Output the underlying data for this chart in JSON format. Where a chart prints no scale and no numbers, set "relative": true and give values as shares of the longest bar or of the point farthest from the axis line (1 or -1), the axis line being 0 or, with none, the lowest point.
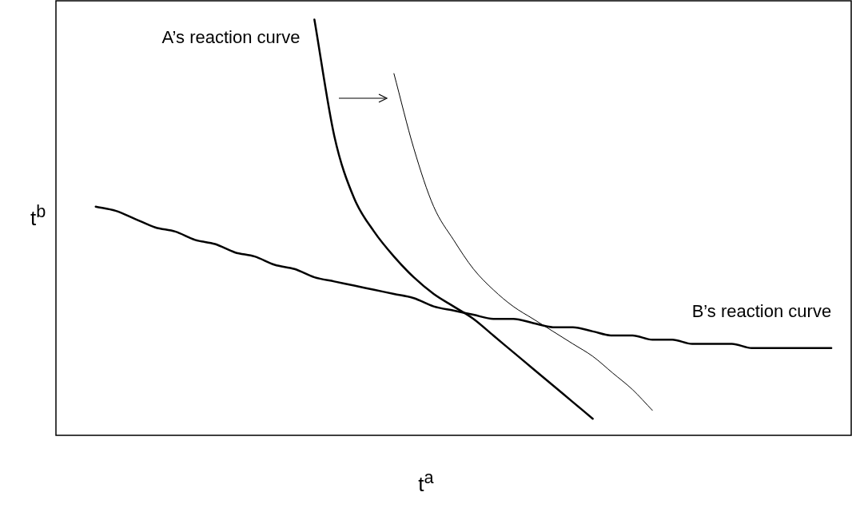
{
  "chart_data": {
    "type": "line",
    "relative": true,
    "xlabel": "t$^{a}$",
    "ylabel": "t$^{b}$",
    "legend": false,
    "marker": "none",
    "categories": [
      null,
      null,
      null,
      null,
      null,
      null,
      null,
      null,
      null,
      null,
      null,
      null,
      null,
      null,
      null,
      null,
      null,
      null,
      null,
      null,
      null,
      null,
      null,
      null,
      null,
      null,
      null,
      null,
      null,
      null,
      null,
      null,
      null,
      null,
      null,
      null,
      null,
      null,
      null,
      null,
      null
    ],
    "series": [
      {
        "name": "A’s reaction curve",
        "color": "#000000",
        "values": [
          null,
          null,
          null,
          null,
          null,
          null,
          null,
          null,
          null,
          null,
          null,
          null,
          null,
          1,
          0.72,
          0.57,
          0.49,
          0.43,
          0.38,
          0.34,
          0.31,
          0.28,
          0.24,
          0.2,
          0.16,
          0.12,
          0.08,
          0.04,
          null,
          null,
          null,
          null,
          null,
          null,
          null,
          null,
          null,
          null,
          null,
          null,
          null
        ]
      },
      {
        "color": "#000000",
        "values": [
          null,
          null,
          null,
          null,
          null,
          null,
          null,
          null,
          null,
          null,
          null,
          null,
          null,
          null,
          null,
          null,
          null,
          0.87,
          0.69,
          0.55,
          0.47,
          0.4,
          0.35,
          0.31,
          0.28,
          0.25,
          0.22,
          0.19,
          0.15,
          0.11,
          0.06,
          null,
          null,
          null,
          null,
          null,
          null,
          null,
          null,
          null,
          null
        ]
      },
      {
        "name": "B’s reaction curve",
        "color": "#000000",
        "values": [
          null,
          null,
          0.55,
          0.54,
          0.52,
          0.5,
          0.49,
          0.47,
          0.46,
          0.44,
          0.43,
          0.41,
          0.4,
          0.38,
          0.37,
          0.36,
          0.35,
          0.34,
          0.33,
          0.31,
          0.3,
          0.29,
          0.28,
          0.28,
          0.27,
          0.26,
          0.26,
          0.25,
          0.24,
          0.24,
          0.23,
          0.23,
          0.22,
          0.22,
          0.22,
          0.21,
          0.21,
          0.21,
          0.21,
          0.21,
          null
        ]
      }
    ]
  }
}
